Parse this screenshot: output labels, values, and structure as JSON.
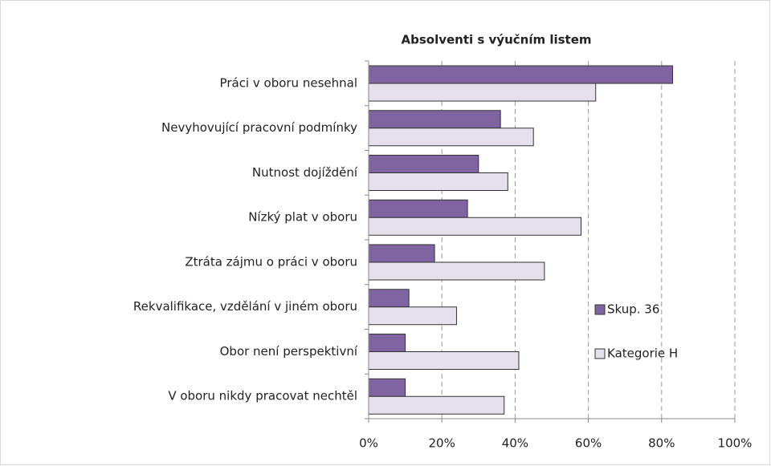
{
  "chart_data": {
    "type": "barh",
    "title": "Absolventi s výučním listem",
    "categories": [
      "Práci v oboru nesehnal",
      "Nevyhovující pracovní podmínky",
      "Nutnost dojíždění",
      "Nízký plat v oboru",
      "Ztráta zájmu o práci v oboru",
      "Rekvalifikace, vzdělání v jiném oboru",
      "Obor není perspektivní",
      "V oboru nikdy pracovat nechtěl"
    ],
    "series": [
      {
        "name": "Skup. 36",
        "color": "#8064a2",
        "values": [
          83,
          36,
          30,
          27,
          18,
          11,
          10,
          10
        ]
      },
      {
        "name": "Kategorie H",
        "color": "#e6e0ec",
        "values": [
          62,
          45,
          38,
          58,
          48,
          24,
          41,
          37
        ]
      }
    ],
    "xlim": [
      0,
      100
    ],
    "xticks": [
      {
        "value": 0,
        "label": "0%"
      },
      {
        "value": 20,
        "label": "20%"
      },
      {
        "value": 40,
        "label": "40%"
      },
      {
        "value": 60,
        "label": "60%"
      },
      {
        "value": 80,
        "label": "80%"
      },
      {
        "value": 100,
        "label": "100%"
      }
    ],
    "grid": true,
    "legend": "right"
  }
}
